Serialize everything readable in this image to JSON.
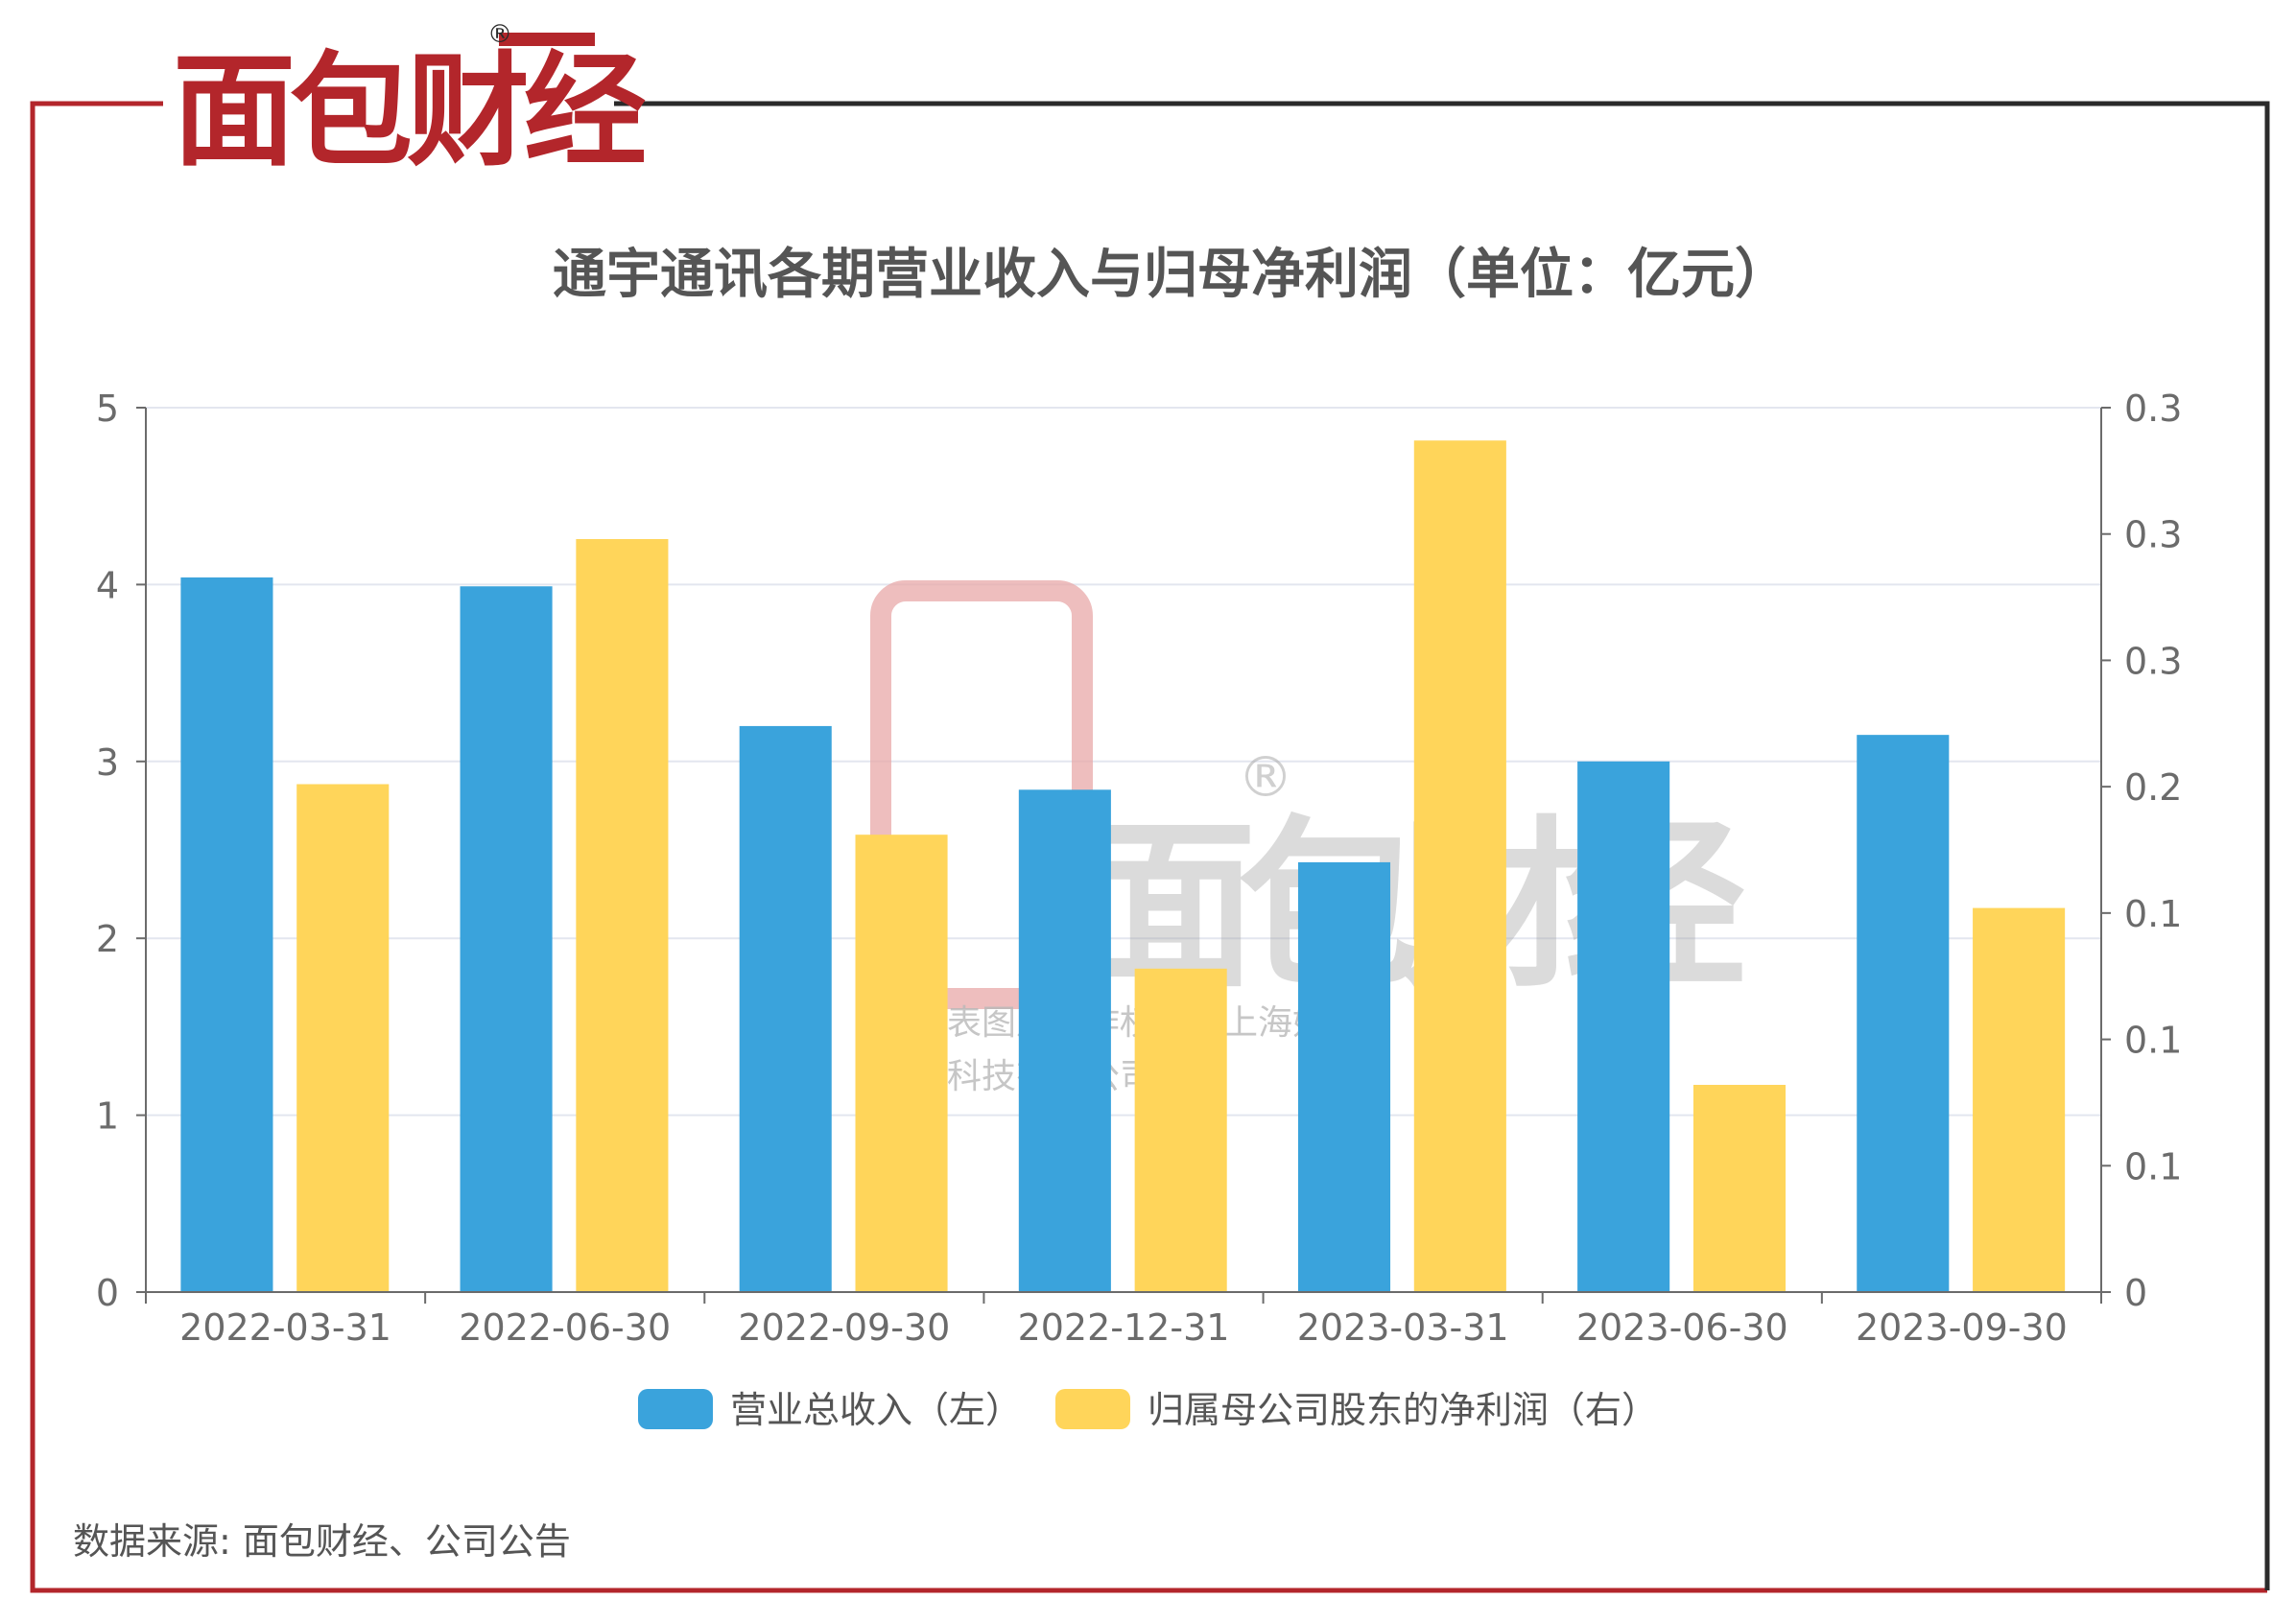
{
  "brand": {
    "logo_text": "面包财经",
    "registered_mark": "®",
    "primary_color": "#b3262b",
    "dark_color": "#2a2a2a"
  },
  "chart_data": {
    "type": "bar",
    "title": "通宇通讯各期营业收入与归母净利润（单位：亿元）",
    "categories": [
      "2022-03-31",
      "2022-06-30",
      "2022-09-30",
      "2022-12-31",
      "2023-03-31",
      "2023-06-30",
      "2023-09-30"
    ],
    "series": [
      {
        "name": "营业总收入（左）",
        "axis": "left",
        "color": "#3aa3dc",
        "values": [
          4.04,
          3.99,
          3.2,
          2.84,
          2.43,
          3.0,
          3.15
        ]
      },
      {
        "name": "归属母公司股东的净利润（右）",
        "axis": "right",
        "color": "#ffd55a",
        "values": [
          0.201,
          0.298,
          0.181,
          0.128,
          0.337,
          0.082,
          0.152
        ]
      }
    ],
    "y_left": {
      "range": [
        0,
        5
      ],
      "ticks": [
        "0",
        "1",
        "2",
        "3",
        "4",
        "5"
      ]
    },
    "y_right": {
      "range": [
        0,
        0.35
      ],
      "ticks": [
        "0",
        "0.1",
        "0.1",
        "0.1",
        "0.2",
        "0.3",
        "0.3",
        "0.3"
      ]
    },
    "grid": true,
    "legend_position": "bottom-center"
  },
  "watermark": {
    "line1": "本图表图片著作权属于上海妙探",
    "line2": "网络科技有限公司"
  },
  "footer": {
    "source": "数据来源: 面包财经、公司公告"
  }
}
